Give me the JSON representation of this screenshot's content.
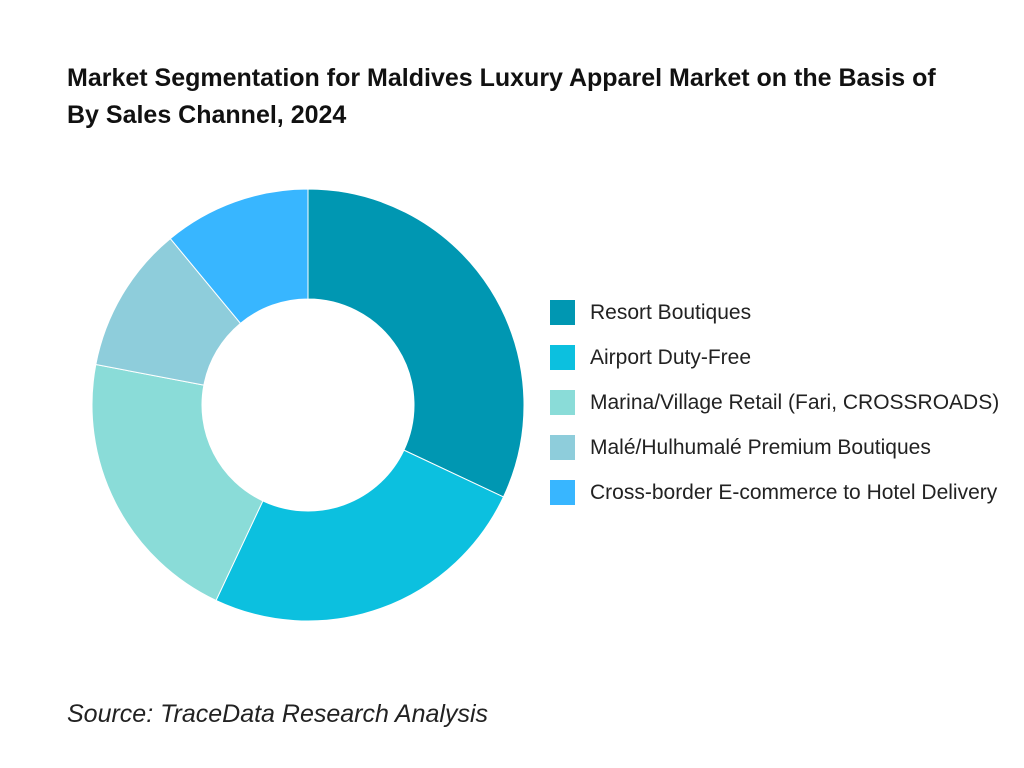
{
  "title": "Market Segmentation for Maldives Luxury Apparel Market on the Basis of By Sales Channel, 2024",
  "source": "Source: TraceData Research Analysis",
  "chart_data": {
    "type": "pie",
    "donut": true,
    "legend_position": "right",
    "categories": [
      "Resort Boutiques",
      "Airport Duty-Free",
      "Marina/Village Retail (Fari, CROSSROADS)",
      "Malé/Hulhumalé Premium Boutiques",
      "Cross-border E-commerce to Hotel Delivery"
    ],
    "values": [
      32,
      25,
      21,
      11,
      11
    ],
    "colors": [
      "#0097B2",
      "#0CC0DF",
      "#8ADCD8",
      "#8ECDDB",
      "#38B6FF"
    ]
  }
}
